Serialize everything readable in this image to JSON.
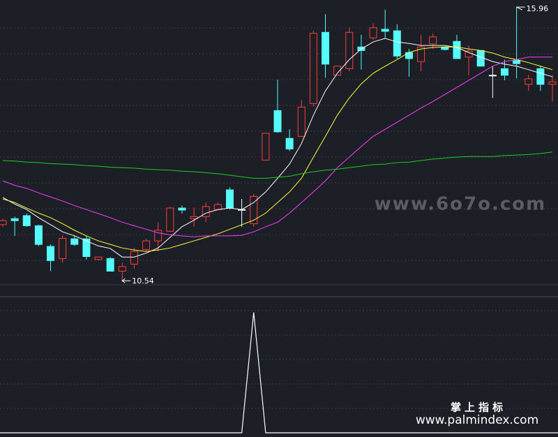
{
  "chart_data": [
    {
      "type": "candlestick",
      "open": [
        11.65,
        11.77,
        11.83,
        11.63,
        11.22,
        10.98,
        11.37,
        11.37,
        10.96,
        10.98,
        10.73,
        10.87,
        11.16,
        11.33,
        11.52,
        11.98,
        11.77,
        11.81,
        11.95,
        12.34,
        11.95,
        11.67,
        12.93,
        13.91,
        13.36,
        13.4,
        14.05,
        15.46,
        14.61,
        14.74,
        15.17,
        15.35,
        15.52,
        15.49,
        15.06,
        14.88,
        15.23,
        15.17,
        15.28,
        14.97,
        15.1,
        14.61,
        14.74,
        14.9,
        14.43,
        14.74,
        14.43
      ],
      "high": [
        11.77,
        11.81,
        11.87,
        11.65,
        11.26,
        11.44,
        11.43,
        11.43,
        11.02,
        11.01,
        10.9,
        11.19,
        11.37,
        11.7,
        12.01,
        12.03,
        11.99,
        12.09,
        12.09,
        12.39,
        12.16,
        12.26,
        13.46,
        14.52,
        13.54,
        14.12,
        15.49,
        15.82,
        14.79,
        15.55,
        15.41,
        15.64,
        15.91,
        15.62,
        15.13,
        15.41,
        15.44,
        15.17,
        15.41,
        15.2,
        15.1,
        14.79,
        14.92,
        15.96,
        14.62,
        14.79,
        14.61
      ],
      "low": [
        11.61,
        11.43,
        11.61,
        11.23,
        10.73,
        10.9,
        11.23,
        10.96,
        10.94,
        10.73,
        10.54,
        10.78,
        11.12,
        11.12,
        11.52,
        11.87,
        11.61,
        11.7,
        11.94,
        11.95,
        11.61,
        11.61,
        12.93,
        13.47,
        13.11,
        13.39,
        13.99,
        14.56,
        14.61,
        14.69,
        14.72,
        15.31,
        15.34,
        14.94,
        14.58,
        14.69,
        15.13,
        15.1,
        14.94,
        14.61,
        14.79,
        14.16,
        14.51,
        14.55,
        14.3,
        14.3,
        14.09
      ],
      "close": [
        11.73,
        11.73,
        11.63,
        11.26,
        10.94,
        11.38,
        11.26,
        11.02,
        11.01,
        10.73,
        10.82,
        11.12,
        11.33,
        11.54,
        11.98,
        11.94,
        11.81,
        12.01,
        12.05,
        11.98,
        11.95,
        12.21,
        13.46,
        13.49,
        13.15,
        13.98,
        15.44,
        14.83,
        14.79,
        15.46,
        15.1,
        15.55,
        15.48,
        14.99,
        14.94,
        15.17,
        15.37,
        15.12,
        14.94,
        15.09,
        14.79,
        14.61,
        14.61,
        14.84,
        14.54,
        14.43,
        14.48
      ],
      "up_color": "#ff3c3c",
      "down_color": "#54fcfc",
      "flat_color": "#ffffff",
      "series": [
        {
          "color": "#ffffff",
          "values": [
            12.19,
            12.06,
            11.95,
            11.79,
            11.65,
            11.51,
            11.43,
            11.33,
            11.23,
            11.18,
            11.01,
            11.01,
            11.09,
            11.19,
            11.4,
            11.61,
            11.74,
            11.88,
            11.95,
            11.98,
            11.95,
            12.09,
            12.3,
            12.57,
            12.85,
            13.26,
            13.82,
            14.3,
            14.65,
            14.92,
            15.13,
            15.27,
            15.34,
            15.27,
            15.24,
            15.2,
            15.2,
            15.2,
            15.16,
            15.06,
            14.97,
            14.88,
            14.83,
            14.79,
            14.72,
            14.65,
            14.58
          ]
        },
        {
          "color": "#ffff3c",
          "values": [
            12.16,
            12.09,
            11.98,
            11.88,
            11.79,
            11.67,
            11.54,
            11.43,
            11.33,
            11.26,
            11.19,
            11.15,
            11.12,
            11.15,
            11.19,
            11.26,
            11.33,
            11.4,
            11.47,
            11.56,
            11.65,
            11.74,
            11.88,
            12.09,
            12.3,
            12.57,
            12.99,
            13.4,
            13.82,
            14.16,
            14.44,
            14.65,
            14.79,
            14.92,
            15.06,
            15.13,
            15.16,
            15.17,
            15.17,
            15.13,
            15.1,
            15.05,
            14.97,
            14.92,
            14.86,
            14.79,
            14.72
          ]
        },
        {
          "color": "#ff3cff",
          "values": [
            12.52,
            12.43,
            12.37,
            12.28,
            12.2,
            12.12,
            12.03,
            11.95,
            11.87,
            11.79,
            11.7,
            11.63,
            11.56,
            11.49,
            11.45,
            11.43,
            11.41,
            11.43,
            11.43,
            11.43,
            11.44,
            11.51,
            11.61,
            11.7,
            11.88,
            12.09,
            12.3,
            12.52,
            12.78,
            12.99,
            13.2,
            13.4,
            13.54,
            13.68,
            13.82,
            13.96,
            14.09,
            14.23,
            14.37,
            14.51,
            14.65,
            14.79,
            14.88,
            14.92,
            14.97,
            14.97,
            14.97
          ]
        },
        {
          "color": "#22cc22",
          "values": [
            12.92,
            12.91,
            12.89,
            12.88,
            12.86,
            12.85,
            12.84,
            12.82,
            12.81,
            12.79,
            12.78,
            12.77,
            12.75,
            12.74,
            12.73,
            12.71,
            12.7,
            12.68,
            12.66,
            12.63,
            12.6,
            12.57,
            12.57,
            12.59,
            12.61,
            12.66,
            12.7,
            12.73,
            12.75,
            12.78,
            12.81,
            12.84,
            12.85,
            12.88,
            12.89,
            12.92,
            12.95,
            12.97,
            12.99,
            13.0,
            13.0,
            13.0,
            13.02,
            13.03,
            13.04,
            13.06,
            13.09
          ]
        }
      ],
      "ylim": [
        10.46,
        16.1
      ]
    },
    {
      "type": "line",
      "series": [
        {
          "color": "#ffffff",
          "values": [
            0,
            0,
            0,
            0,
            0,
            0,
            0,
            0,
            0,
            0,
            0,
            0,
            0,
            0,
            0,
            0,
            0,
            0,
            0,
            0,
            0,
            1,
            0,
            0,
            0,
            0,
            0,
            0,
            0,
            0,
            0,
            0,
            0,
            0,
            0,
            0,
            0,
            0,
            0,
            0,
            0,
            0,
            0,
            0,
            0,
            0,
            0
          ]
        }
      ],
      "ylim": [
        0,
        1.13
      ]
    }
  ],
  "watermarks": {
    "center": "www.6o7o.com",
    "brand": "掌上指标",
    "site": "www.palmindex.com"
  }
}
